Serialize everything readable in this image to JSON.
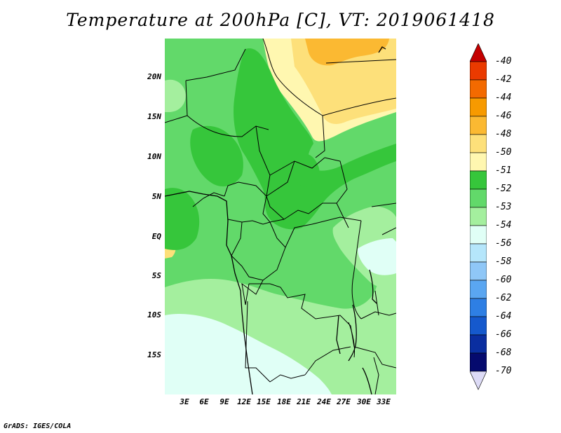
{
  "title": "Temperature at 200hPa [C], VT: 2019061418",
  "credit": "GrADS: IGES/COLA",
  "lat_labels": [
    "20N",
    "15N",
    "10N",
    "5N",
    "EQ",
    "5S",
    "10S",
    "15S"
  ],
  "lon_labels": [
    "3E",
    "6E",
    "9E",
    "12E",
    "15E",
    "18E",
    "21E",
    "24E",
    "27E",
    "30E",
    "33E"
  ],
  "colorbar": {
    "labels": [
      "-40",
      "-42",
      "-44",
      "-46",
      "-48",
      "-50",
      "-51",
      "-52",
      "-53",
      "-54",
      "-56",
      "-58",
      "-60",
      "-62",
      "-64",
      "-66",
      "-68",
      "-70"
    ],
    "colors": [
      "#c40000",
      "#ea3a00",
      "#f36a00",
      "#f79a00",
      "#fbb932",
      "#fde07a",
      "#fff7b0",
      "#36c63b",
      "#62d96a",
      "#a4ef9e",
      "#e0fff6",
      "#b5e6fb",
      "#8fc7f7",
      "#5aa6f1",
      "#2e7fe4",
      "#1559cd",
      "#0a2ea0",
      "#050a6e",
      "#dddbf6"
    ]
  },
  "map_colors": {
    "c48": "#fbb932",
    "c50": "#fde07a",
    "c51": "#fff7b0",
    "c52": "#36c63b",
    "c53": "#62d96a",
    "c54": "#a4ef9e",
    "c56": "#e0fff6",
    "c58": "#b5e6fb"
  }
}
